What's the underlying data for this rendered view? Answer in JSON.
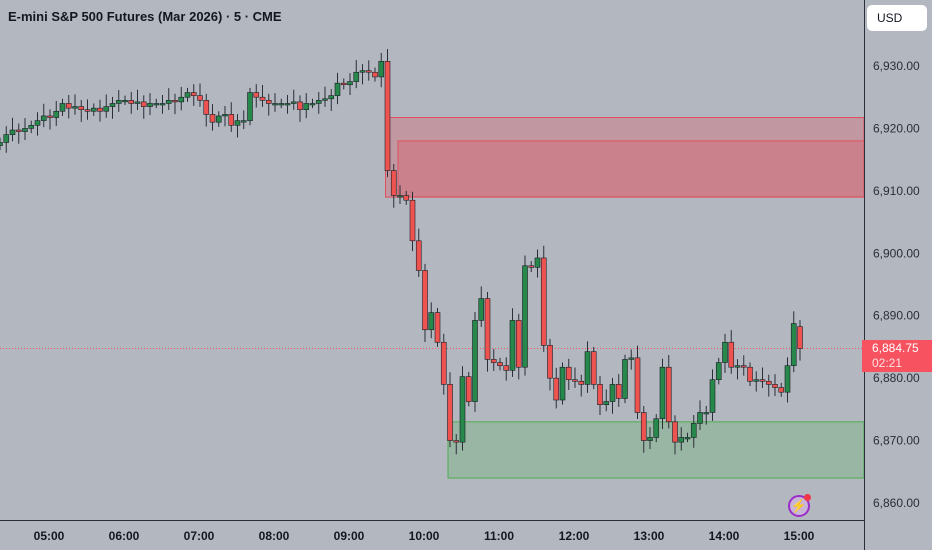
{
  "header": {
    "title": "E-mini S&P 500 Futures (Mar 2026) · 5 · CME",
    "currency_button": "USD"
  },
  "price_label": {
    "price": "6,884.75",
    "countdown": "02:21"
  },
  "colors": {
    "background": "#b3b7bf",
    "up": "#26884a",
    "down": "#ef5350",
    "supply_zone": "#e0505e",
    "demand_zone": "#4caf50",
    "price_line": "#f7525f"
  },
  "icons": {
    "alert": "lightning-bolt-icon"
  },
  "chart_data": {
    "type": "candlestick",
    "interval": "5 min",
    "y_ticks": [
      "6,930.00",
      "6,920.00",
      "6,910.00",
      "6,900.00",
      "6,890.00",
      "6,880.00",
      "6,870.00",
      "6,860.00"
    ],
    "y_tick_values": [
      6930,
      6920,
      6910,
      6900,
      6890,
      6880,
      6870,
      6860
    ],
    "x_ticks": [
      "05:00",
      "06:00",
      "07:00",
      "08:00",
      "09:00",
      "10:00",
      "11:00",
      "12:00",
      "13:00",
      "14:00",
      "15:00"
    ],
    "ylim": [
      6857,
      6937
    ],
    "last_price": 6884.75,
    "last_open": 6888.25,
    "zones": [
      {
        "kind": "supply",
        "top": 6921.75,
        "bottom": 6909.0,
        "start_bar": 62
      },
      {
        "kind": "supply",
        "top": 6918.0,
        "bottom": 6909.0,
        "start_bar": 64
      },
      {
        "kind": "demand",
        "top": 6873.0,
        "bottom": 6864.0,
        "start_bar": 72
      }
    ],
    "close": [
      6917.75,
      6919.0,
      6919.75,
      6919.5,
      6920.0,
      6920.5,
      6921.25,
      6922.0,
      6921.75,
      6922.75,
      6924.0,
      6923.25,
      6923.5,
      6923.0,
      6922.75,
      6923.25,
      6922.75,
      6923.5,
      6924.0,
      6924.5,
      6924.5,
      6924.0,
      6924.25,
      6923.5,
      6924.0,
      6924.0,
      6924.0,
      6924.5,
      6924.25,
      6925.0,
      6925.75,
      6925.25,
      6924.5,
      6922.25,
      6921.0,
      6922.0,
      6922.25,
      6920.5,
      6921.25,
      6921.25,
      6925.75,
      6925.0,
      6924.5,
      6924.0,
      6924.0,
      6924.0,
      6924.0,
      6924.25,
      6923.0,
      6924.0,
      6924.0,
      6924.5,
      6924.75,
      6925.25,
      6927.25,
      6927.0,
      6927.5,
      6929.0,
      6929.25,
      6929.0,
      6928.25,
      6930.75,
      6913.25,
      6909.25,
      6909.25,
      6908.5,
      6902.0,
      6897.25,
      6887.75,
      6890.5,
      6885.75,
      6879.0,
      6870.0,
      6869.75,
      6880.25,
      6876.25,
      6889.25,
      6892.75,
      6883.0,
      6882.5,
      6882.0,
      6881.25,
      6889.25,
      6881.75,
      6898.0,
      6897.75,
      6899.25,
      6885.25,
      6880.0,
      6876.5,
      6881.75,
      6879.75,
      6879.5,
      6879.0,
      6884.25,
      6879.0,
      6875.75,
      6876.25,
      6879.0,
      6876.75,
      6883.0,
      6883.25,
      6874.5,
      6870.0,
      6870.5,
      6873.5,
      6881.75,
      6873.0,
      6869.75,
      6870.5,
      6870.5,
      6872.75,
      6874.5,
      6874.5,
      6879.75,
      6882.5,
      6885.75,
      6881.75,
      6882.0,
      6881.75,
      6879.5,
      6879.75,
      6879.5,
      6879.0,
      6878.5,
      6877.75,
      6882.0,
      6888.75,
      6884.75
    ]
  }
}
